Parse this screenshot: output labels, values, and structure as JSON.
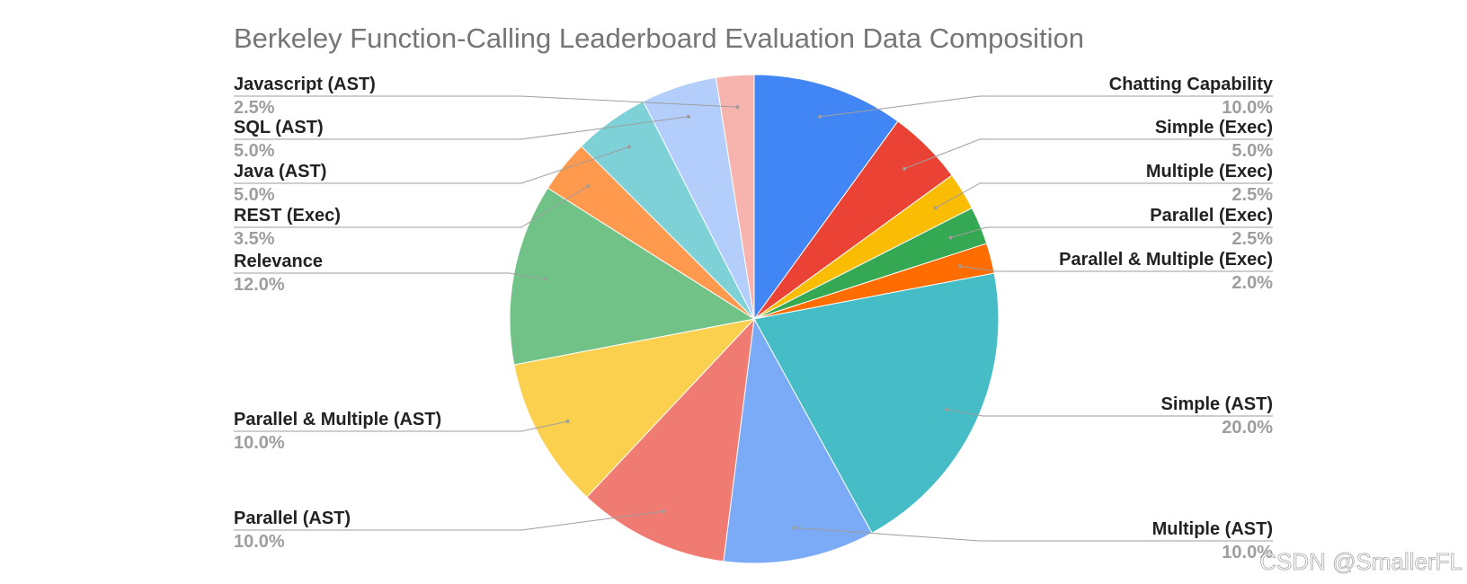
{
  "chart_data": {
    "type": "pie",
    "title": "Berkeley Function-Calling Leaderboard Evaluation Data Composition",
    "slices": [
      {
        "label": "Chatting Capability",
        "value": 10.0,
        "pct": "10.0%",
        "color": "#4285f4"
      },
      {
        "label": "Simple (Exec)",
        "value": 5.0,
        "pct": "5.0%",
        "color": "#ea4335"
      },
      {
        "label": "Multiple (Exec)",
        "value": 2.5,
        "pct": "2.5%",
        "color": "#fbbc04"
      },
      {
        "label": "Parallel (Exec)",
        "value": 2.5,
        "pct": "2.5%",
        "color": "#34a853"
      },
      {
        "label": "Parallel & Multiple (Exec)",
        "value": 2.0,
        "pct": "2.0%",
        "color": "#ff6d01"
      },
      {
        "label": "Simple (AST)",
        "value": 20.0,
        "pct": "20.0%",
        "color": "#46bdc6"
      },
      {
        "label": "Multiple (AST)",
        "value": 10.0,
        "pct": "10.0%",
        "color": "#7baaf7"
      },
      {
        "label": "Parallel (AST)",
        "value": 10.0,
        "pct": "10.0%",
        "color": "#f07b72"
      },
      {
        "label": "Parallel & Multiple (AST)",
        "value": 10.0,
        "pct": "10.0%",
        "color": "#fcd04f"
      },
      {
        "label": "Relevance",
        "value": 12.0,
        "pct": "12.0%",
        "color": "#71c287"
      },
      {
        "label": "REST (Exec)",
        "value": 3.5,
        "pct": "3.5%",
        "color": "#ff994d"
      },
      {
        "label": "Java (AST)",
        "value": 5.0,
        "pct": "5.0%",
        "color": "#7ed1d7"
      },
      {
        "label": "SQL (AST)",
        "value": 5.0,
        "pct": "5.0%",
        "color": "#b3cefb"
      },
      {
        "label": "Javascript (AST)",
        "value": 2.5,
        "pct": "2.5%",
        "color": "#f7b4ae"
      }
    ]
  },
  "watermark": "CSDN @SmallerFL"
}
